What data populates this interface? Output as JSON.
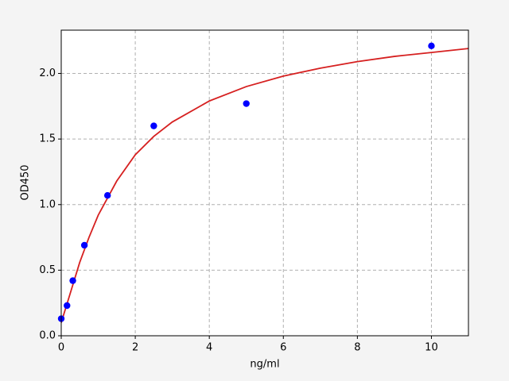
{
  "chart_data": {
    "type": "scatter",
    "xlabel": "ng/ml",
    "ylabel": "OD450",
    "xlim": [
      0,
      11
    ],
    "ylim": [
      0,
      2.33
    ],
    "xticks": [
      0,
      2,
      4,
      6,
      8,
      10
    ],
    "yticks": [
      {
        "value": 0,
        "label": "0.0"
      },
      {
        "value": 0.5,
        "label": "0.5"
      },
      {
        "value": 1,
        "label": "1.0"
      },
      {
        "value": 1.5,
        "label": "1.5"
      },
      {
        "value": 2,
        "label": "2.0"
      }
    ],
    "grid": true,
    "series": [
      {
        "type": "line",
        "color": "#d62020",
        "x": [
          0,
          0.25,
          0.5,
          0.75,
          1,
          1.5,
          2,
          2.5,
          3,
          4,
          5,
          6,
          7,
          8,
          9,
          10,
          11
        ],
        "values": [
          0.1,
          0.33,
          0.56,
          0.75,
          0.92,
          1.18,
          1.38,
          1.52,
          1.63,
          1.79,
          1.9,
          1.98,
          2.04,
          2.09,
          2.13,
          2.16,
          2.19
        ]
      },
      {
        "type": "scatter",
        "color": "#0000ff",
        "x": [
          0,
          0.156,
          0.3125,
          0.625,
          1.25,
          2.5,
          5,
          10
        ],
        "values": [
          0.13,
          0.23,
          0.42,
          0.69,
          1.07,
          1.6,
          1.77,
          2.21
        ]
      }
    ]
  }
}
